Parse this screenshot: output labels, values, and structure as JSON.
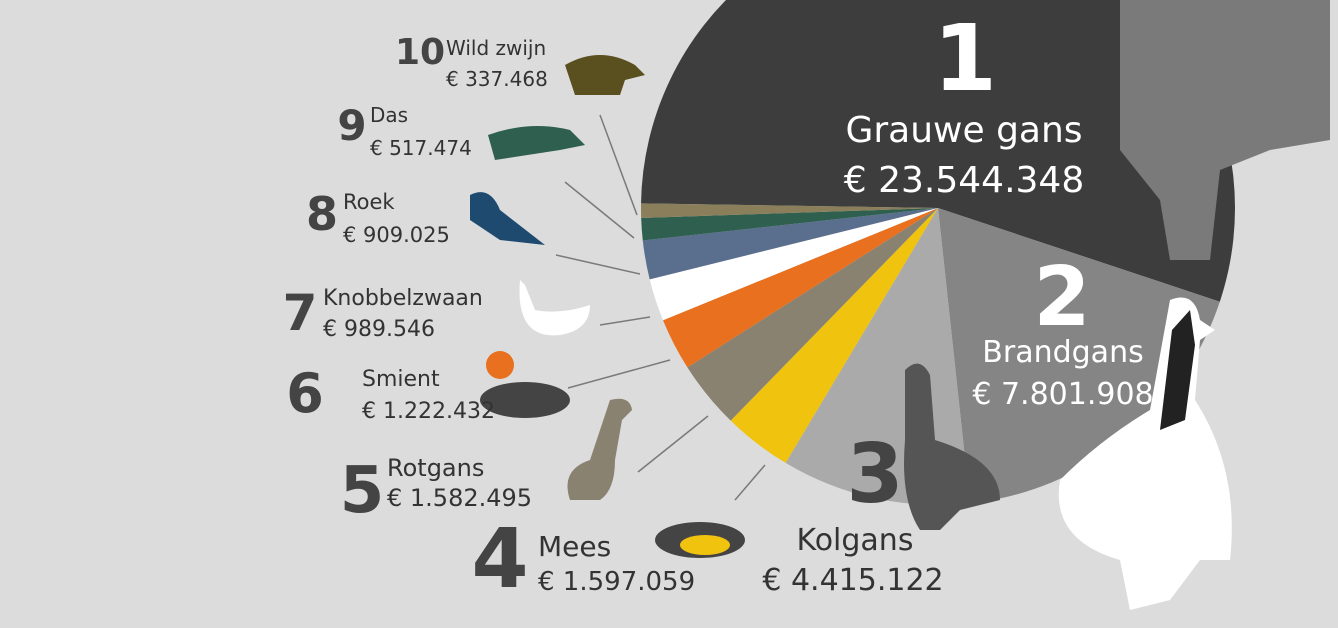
{
  "chart_data": {
    "type": "pie",
    "ranks": [
      1,
      2,
      3,
      4,
      5,
      6,
      7,
      8,
      9,
      10
    ],
    "categories": [
      "Grauwe gans",
      "Brandgans",
      "Kolgans",
      "Mees",
      "Rotgans",
      "Smient",
      "Knobbelzwaan",
      "Roek",
      "Das",
      "Wild zwijn"
    ],
    "values": [
      23544348,
      7801908,
      4415122,
      1597059,
      1582495,
      1222432,
      989546,
      909025,
      517474,
      337468
    ],
    "value_labels": [
      "€ 23.544.348",
      "€ 7.801.908",
      "€ 4.415.122",
      "€ 1.597.059",
      "€ 1.582.495",
      "€ 1.222.432",
      "€ 989.546",
      "€ 909.025",
      "€ 517.474",
      "€ 337.468"
    ],
    "colors": [
      "#3d3d3d",
      "#858585",
      "#aaaaab",
      "#f0c30f",
      "#8a8270",
      "#e8701e",
      "#ffffff",
      "#5a6e8e",
      "#2f5f4f",
      "#8a7f5a"
    ]
  }
}
